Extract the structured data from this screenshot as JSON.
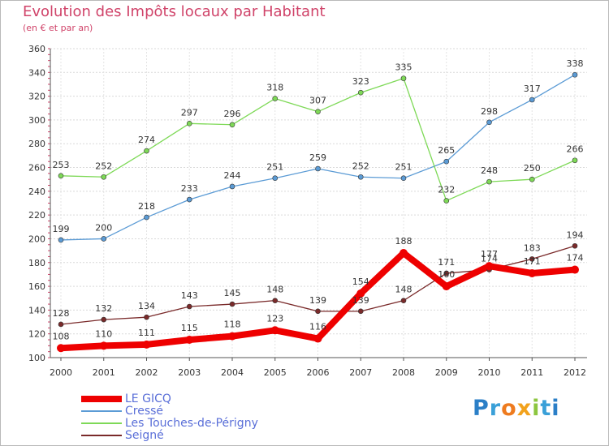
{
  "header": {
    "title": "Evolution des Impôts locaux par Habitant",
    "subtitle": "(en € et par an)"
  },
  "logo": {
    "letters": [
      "P",
      "r",
      "o",
      "x",
      "i",
      "t",
      "i"
    ],
    "colors": [
      "#2b7fc7",
      "#3aa0d8",
      "#ee7b1f",
      "#f2a21c",
      "#8cc63f",
      "#3aa0d8",
      "#2b7fc7"
    ]
  },
  "chart_data": {
    "type": "line",
    "title": "Evolution des Impôts locaux par Habitant",
    "subtitle": "(en € et par an)",
    "x": [
      "2000",
      "2001",
      "2002",
      "2003",
      "2004",
      "2005",
      "2006",
      "2007",
      "2008",
      "2009",
      "2010",
      "2011",
      "2012"
    ],
    "ylim": [
      100,
      360
    ],
    "yticks": [
      100,
      120,
      140,
      160,
      180,
      200,
      220,
      240,
      260,
      280,
      300,
      320,
      340,
      360
    ],
    "grid": true,
    "legend_position": "bottom-left",
    "series": [
      {
        "name": "LE GICQ",
        "color": "#ee0000",
        "values": [
          108,
          110,
          111,
          115,
          118,
          123,
          116,
          154,
          188,
          160,
          177,
          171,
          174
        ]
      },
      {
        "name": "Cressé",
        "color": "#5b9bd5",
        "values": [
          199,
          200,
          218,
          233,
          244,
          251,
          259,
          252,
          251,
          265,
          298,
          317,
          338
        ]
      },
      {
        "name": "Les Touches-de-Périgny",
        "color": "#7ed957",
        "values": [
          253,
          252,
          274,
          297,
          296,
          318,
          307,
          323,
          335,
          232,
          248,
          250,
          266
        ]
      },
      {
        "name": "Seigné",
        "color": "#7a2a2a",
        "values": [
          128,
          132,
          134,
          143,
          145,
          148,
          139,
          139,
          148,
          171,
          174,
          183,
          194
        ]
      }
    ]
  }
}
